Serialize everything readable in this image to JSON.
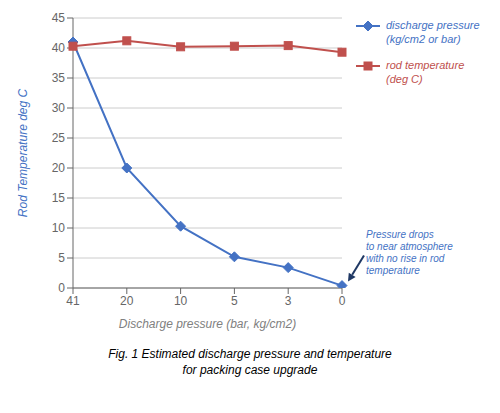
{
  "chart_data": {
    "type": "line",
    "x_label": "Discharge pressure (bar, kg/cm2)",
    "y_label": "Rod Temperature deg C",
    "caption": "Fig. 1 Estimated discharge pressure and temperature\nfor packing case upgrade",
    "categories": [
      "41",
      "20",
      "10",
      "5",
      "3",
      "0"
    ],
    "series": [
      {
        "name": "discharge pressure\n(kg/cm2 or bar)",
        "color": "#4472C4",
        "marker": "diamond",
        "values": [
          41,
          20.0,
          10.3,
          5.2,
          3.4,
          0.4
        ]
      },
      {
        "name": "rod temperature\n(deg C)",
        "color": "#C0504D",
        "marker": "square",
        "values": [
          40.3,
          41.2,
          40.2,
          40.3,
          40.4,
          39.3
        ]
      }
    ],
    "ylim": [
      0,
      45
    ],
    "yticks": [
      0,
      5,
      10,
      15,
      20,
      25,
      30,
      35,
      40,
      45
    ],
    "grid": true,
    "legend": "right",
    "annotations": [
      {
        "text": "Pressure drops\nto near atmosphere\nwith no rise in rod\ntemperature",
        "x": "0",
        "y": 0.4
      }
    ]
  }
}
